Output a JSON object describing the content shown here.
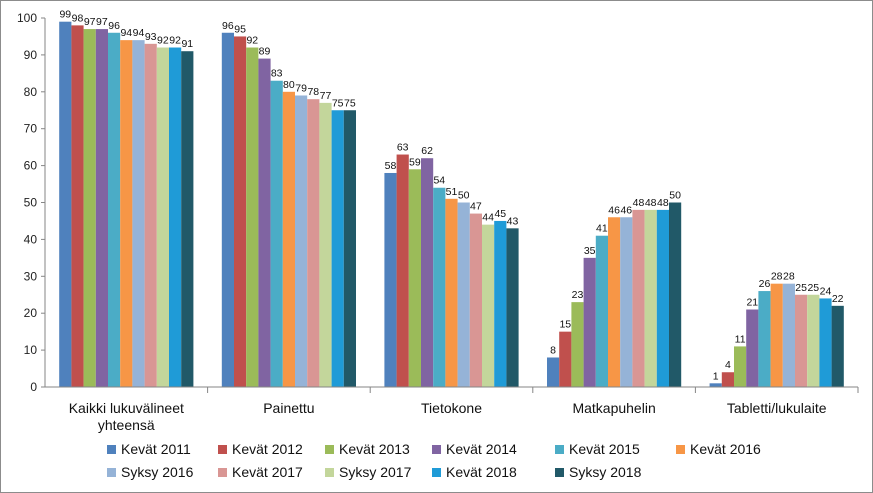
{
  "chart_data": {
    "type": "bar",
    "title": "",
    "xlabel": "",
    "ylabel": "",
    "ylim": [
      0,
      100
    ],
    "yticks": [
      "0",
      "10",
      "20",
      "30",
      "40",
      "50",
      "60",
      "70",
      "80",
      "90",
      "100"
    ],
    "grid": false,
    "legend_position": "bottom",
    "categories": [
      [
        "Kaikki lukuvälineet",
        "yhteensä"
      ],
      [
        "Painettu"
      ],
      [
        "Tietokone"
      ],
      [
        "Matkapuhelin"
      ],
      [
        "Tabletti/lukulaite"
      ]
    ],
    "series": [
      {
        "name": "Kevät 2011",
        "color": "#4F81BD",
        "values": [
          99,
          96,
          58,
          8,
          1
        ]
      },
      {
        "name": "Kevät 2012",
        "color": "#C0504D",
        "values": [
          98,
          95,
          63,
          15,
          4
        ]
      },
      {
        "name": "Kevät 2013",
        "color": "#9BBB59",
        "values": [
          97,
          92,
          59,
          23,
          11
        ]
      },
      {
        "name": "Kevät 2014",
        "color": "#8064A2",
        "values": [
          97,
          89,
          62,
          35,
          21
        ]
      },
      {
        "name": "Kevät 2015",
        "color": "#4BACC6",
        "values": [
          96,
          83,
          54,
          41,
          26
        ]
      },
      {
        "name": "Kevät 2016",
        "color": "#F79646",
        "values": [
          94,
          80,
          51,
          46,
          28
        ]
      },
      {
        "name": "Syksy 2016",
        "color": "#95B3D7",
        "values": [
          94,
          79,
          50,
          46,
          28
        ]
      },
      {
        "name": "Kevät 2017",
        "color": "#D99694",
        "values": [
          93,
          78,
          47,
          48,
          25
        ]
      },
      {
        "name": "Syksy 2017",
        "color": "#C3D69B",
        "values": [
          92,
          77,
          44,
          48,
          25
        ]
      },
      {
        "name": "Kevät 2018",
        "color": "#1F9BD7",
        "values": [
          92,
          75,
          45,
          48,
          24
        ]
      },
      {
        "name": "Syksy 2018",
        "color": "#215968",
        "values": [
          91,
          75,
          43,
          50,
          22
        ]
      }
    ]
  }
}
